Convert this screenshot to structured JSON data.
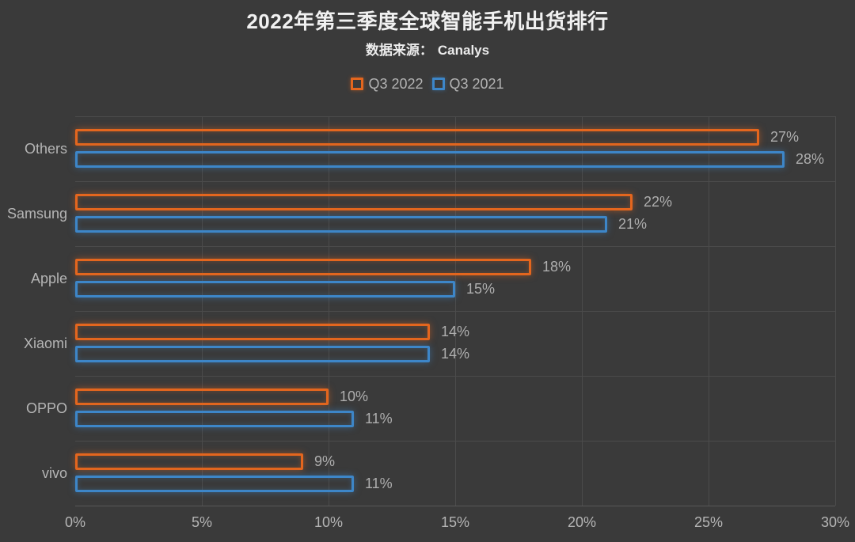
{
  "header": {
    "title": "2022年第三季度全球智能手机出货排行",
    "subtitle_prefix": "数据来源：",
    "source": "Canalys"
  },
  "colors": {
    "background": "#3a3a3a",
    "grid": "#4b4b4b",
    "title_text": "#f1f1f1",
    "label_text": "#b5b5b5",
    "q3_2022_orange": "#e4661e",
    "q3_2021_blue": "#3d86c8"
  },
  "chart_data": {
    "type": "bar",
    "orientation": "horizontal",
    "title": "2022年第三季度全球智能手机出货排行",
    "subtitle_prefix": "数据来源：",
    "source": "Canalys",
    "categories": [
      "Others",
      "Samsung",
      "Apple",
      "Xiaomi",
      "OPPO",
      "vivo"
    ],
    "series": [
      {
        "name": "Q3 2022",
        "color": "#e4661e",
        "values": [
          27,
          22,
          18,
          14,
          10,
          9
        ]
      },
      {
        "name": "Q3 2021",
        "color": "#3d86c8",
        "values": [
          28,
          21,
          15,
          14,
          11,
          11
        ]
      }
    ],
    "value_suffix": "%",
    "xlabel": "",
    "ylabel": "",
    "xlim": [
      0,
      30
    ],
    "x_ticks": [
      "0%",
      "5%",
      "10%",
      "15%",
      "20%",
      "25%",
      "30%"
    ],
    "grid": true,
    "legend_position": "top"
  }
}
